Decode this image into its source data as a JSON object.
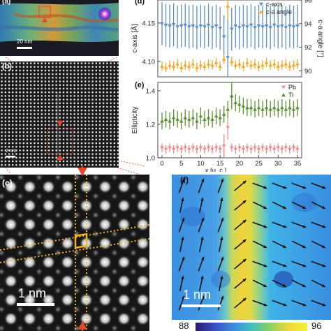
{
  "panels": {
    "a": {
      "label": "(a)",
      "scalebar": "20 nm"
    },
    "b": {
      "label": "(b)",
      "scalebar": "2 nm"
    },
    "c": {
      "label": "(c)",
      "scalebar": "1 nm"
    },
    "d": {
      "label": "(d)"
    },
    "e": {
      "label": "(e)"
    },
    "f": {
      "label": "(f)",
      "scalebar": "1 nm"
    }
  },
  "colorbar": {
    "min": "88",
    "max": "96"
  },
  "colors": {
    "c_axis": "#5b8fc7",
    "angle": "#f5a623",
    "pb": "#f08a8a",
    "ti": "#5a8f2e",
    "arrow": "#e2492b",
    "dashed": "#f0b429"
  },
  "chart_data": [
    {
      "type": "line",
      "panel": "d",
      "xlim": [
        0,
        35
      ],
      "ylim_left": [
        4.08,
        4.18
      ],
      "ylim_right": [
        89.5,
        96
      ],
      "yticks_left": [
        "4.15",
        "4.10"
      ],
      "yticks_right": [
        "96",
        "94",
        "92",
        "90"
      ],
      "ylabel_left": "c-axis [Å]",
      "ylabel_right": "c-a angle [°]",
      "legend": [
        "c-axis",
        "c-a angle"
      ],
      "legend_position": "top-right",
      "series": [
        {
          "name": "c-axis",
          "marker": "triangle-down",
          "values": [
            4.149,
            4.147,
            4.146,
            4.148,
            4.145,
            4.146,
            4.147,
            4.145,
            4.146,
            4.144,
            4.146,
            4.145,
            4.147,
            4.144,
            4.146,
            4.143,
            4.132,
            4.105,
            4.142,
            4.146,
            4.144,
            4.146,
            4.145,
            4.147,
            4.144,
            4.146,
            4.145,
            4.146,
            4.144,
            4.147,
            4.145,
            4.146,
            4.144,
            4.146,
            4.145,
            4.146
          ],
          "err": 0.028
        },
        {
          "name": "c-a angle",
          "marker": "triangle-up",
          "values": [
            90.4,
            90.3,
            90.5,
            90.4,
            90.6,
            90.3,
            90.5,
            90.4,
            90.6,
            90.3,
            90.5,
            90.4,
            90.6,
            90.5,
            90.7,
            90.4,
            91.0,
            95.5,
            90.8,
            90.5,
            90.6,
            90.4,
            90.7,
            90.5,
            90.6,
            90.4,
            90.5,
            90.7,
            90.5,
            90.6,
            90.4,
            90.5,
            90.6,
            90.4,
            90.5,
            90.6
          ],
          "err": 0.4
        }
      ]
    },
    {
      "type": "line",
      "panel": "e",
      "xlim": [
        0,
        35
      ],
      "ylim": [
        1.0,
        1.45
      ],
      "yticks": [
        "1.4",
        "1.2",
        "1.0"
      ],
      "xticks": [
        "0",
        "5",
        "10",
        "15",
        "20",
        "25",
        "30",
        "35"
      ],
      "ylabel": "Ellipticity",
      "xlabel": "x [u. c.]",
      "legend": [
        "Pb",
        "Ti"
      ],
      "legend_position": "top-right",
      "series": [
        {
          "name": "Pb",
          "marker": "triangle-down",
          "values": [
            1.06,
            1.05,
            1.06,
            1.05,
            1.06,
            1.05,
            1.06,
            1.05,
            1.06,
            1.05,
            1.06,
            1.05,
            1.06,
            1.05,
            1.06,
            1.05,
            1.07,
            1.18,
            1.06,
            1.05,
            1.06,
            1.05,
            1.06,
            1.05,
            1.06,
            1.05,
            1.06,
            1.05,
            1.06,
            1.05,
            1.06,
            1.05,
            1.06,
            1.05,
            1.06,
            1.05
          ],
          "err": 0.025
        },
        {
          "name": "Ti",
          "marker": "triangle-up",
          "values": [
            1.22,
            1.23,
            1.22,
            1.24,
            1.23,
            1.22,
            1.24,
            1.23,
            1.24,
            1.22,
            1.25,
            1.23,
            1.24,
            1.23,
            1.25,
            1.24,
            1.26,
            1.29,
            1.37,
            1.33,
            1.32,
            1.31,
            1.3,
            1.3,
            1.29,
            1.3,
            1.29,
            1.3,
            1.29,
            1.3,
            1.29,
            1.3,
            1.29,
            1.3,
            1.29,
            1.3
          ],
          "err": 0.05
        }
      ]
    }
  ]
}
